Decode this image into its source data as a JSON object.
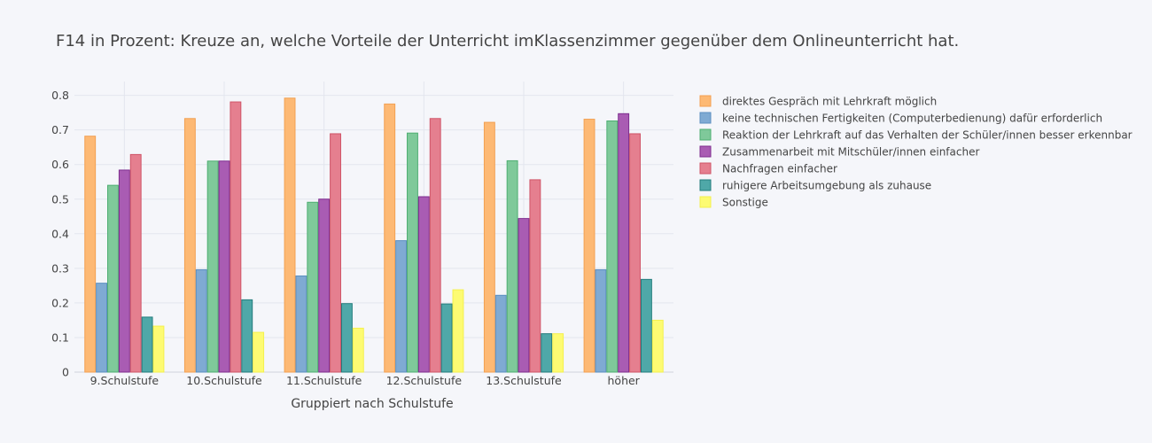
{
  "colors": {
    "background": "#f5f6fa",
    "grid": "#e3e6ee",
    "axis_line": "#cfd3dc",
    "text": "#444444"
  },
  "chart_data": {
    "type": "bar",
    "title": "F14 in Prozent: Kreuze an, welche Vorteile der Unterricht imKlassenzimmer gegenüber dem Onlineunterricht hat.",
    "xlabel": "Gruppiert nach Schulstufe",
    "ylabel": "",
    "ylim": [
      0,
      0.84
    ],
    "yticks": [
      0,
      0.1,
      0.2,
      0.3,
      0.4,
      0.5,
      0.6,
      0.7,
      0.8
    ],
    "ytick_labels": [
      "0",
      "0.1",
      "0.2",
      "0.3",
      "0.4",
      "0.5",
      "0.6",
      "0.7",
      "0.8"
    ],
    "grid": true,
    "legend_position": "right",
    "categories": [
      "9.Schulstufe",
      "10.Schulstufe",
      "11.Schulstufe",
      "12.Schulstufe",
      "13.Schulstufe",
      "höher"
    ],
    "series": [
      {
        "name": "direktes Gespräch mit Lehrkraft möglich",
        "color": "#fdb974",
        "stroke": "#f2a052",
        "values": [
          0.682,
          0.733,
          0.792,
          0.775,
          0.722,
          0.731
        ]
      },
      {
        "name": "keine technischen Fertigkeiten (Computerbedienung) dafür erforderlich",
        "color": "#7faad3",
        "stroke": "#5b8fc0",
        "values": [
          0.257,
          0.296,
          0.278,
          0.38,
          0.222,
          0.296
        ]
      },
      {
        "name": "Reaktion der Lehrkraft auf das Verhalten der Schüler/innen besser erkennbar",
        "color": "#7fc99a",
        "stroke": "#4eae72",
        "values": [
          0.54,
          0.61,
          0.491,
          0.691,
          0.611,
          0.726
        ]
      },
      {
        "name": "Zusammenarbeit mit Mitschüler/innen einfacher",
        "color": "#a95cb3",
        "stroke": "#7e2d8f",
        "values": [
          0.584,
          0.61,
          0.5,
          0.507,
          0.444,
          0.747
        ]
      },
      {
        "name": "Nachfragen einfacher",
        "color": "#e57f8f",
        "stroke": "#cf5467",
        "values": [
          0.629,
          0.781,
          0.689,
          0.733,
          0.556,
          0.689
        ]
      },
      {
        "name": "ruhigere Arbeitsumgebung als zuhause",
        "color": "#4fa8a8",
        "stroke": "#237c7c",
        "values": [
          0.159,
          0.209,
          0.198,
          0.197,
          0.111,
          0.268
        ]
      },
      {
        "name": "Sonstige",
        "color": "#fdfb72",
        "stroke": "#f4f04e",
        "values": [
          0.133,
          0.115,
          0.127,
          0.238,
          0.111,
          0.15
        ]
      }
    ]
  }
}
